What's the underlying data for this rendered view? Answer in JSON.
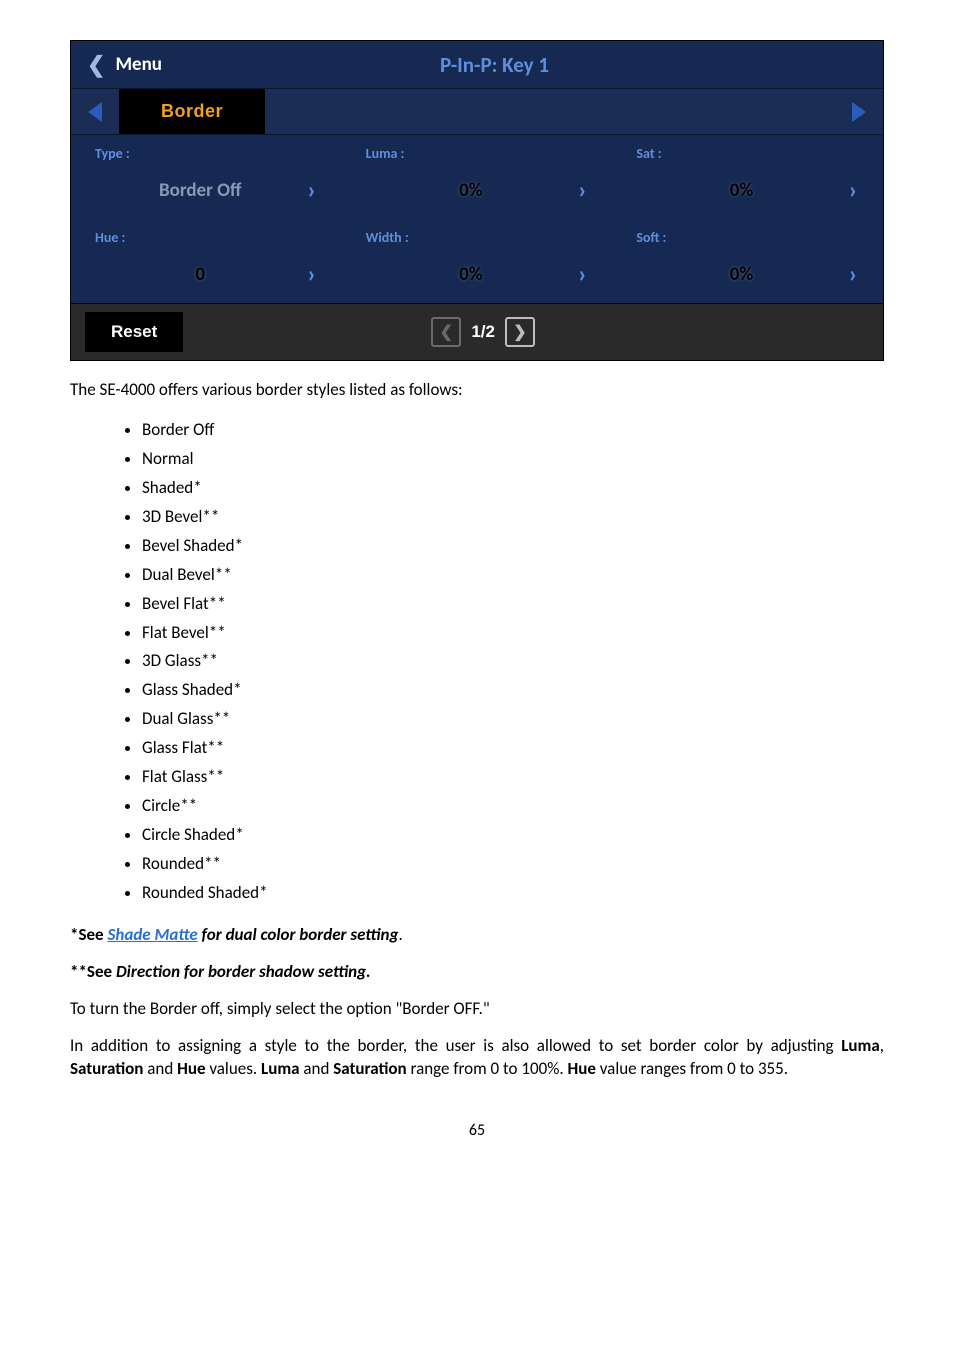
{
  "menu": {
    "back_label": "Menu",
    "title": "P-In-P: Key 1",
    "active_tab": "Border",
    "fields": {
      "type": {
        "label": "Type :",
        "value": "Border Off",
        "value_style": "dim"
      },
      "luma": {
        "label": "Luma :",
        "value": "0%",
        "value_style": "strong"
      },
      "sat": {
        "label": "Sat :",
        "value": "0%",
        "value_style": "strong"
      },
      "hue": {
        "label": "Hue :",
        "value": "0",
        "value_style": "strong"
      },
      "width": {
        "label": "Width :",
        "value": "0%",
        "value_style": "strong"
      },
      "soft": {
        "label": "Soft :",
        "value": "0%",
        "value_style": "strong"
      }
    },
    "reset_label": "Reset",
    "pagination": "1/2"
  },
  "body": {
    "intro": "The SE-4000 offers various border styles listed as follows:",
    "styles": [
      "Border Off",
      "Normal",
      "Shaded*",
      "3D Bevel**",
      "Bevel Shaded*",
      "Dual Bevel**",
      "Bevel Flat**",
      "Flat Bevel**",
      "3D Glass**",
      "Glass Shaded*",
      "Dual Glass**",
      "Glass Flat**",
      "Flat Glass**",
      "Circle**",
      "Circle Shaded*",
      "Rounded**",
      "Rounded Shaded*"
    ],
    "note1_prefix": "*See ",
    "note1_link": "Shade Matte",
    "note1_suffix": " for dual color border setting",
    "note2_prefix": "**See ",
    "note2_rest": "Direction for border shadow setting.",
    "off_line": "To turn the Border off, simply select the option \"Border OFF.\"",
    "para_a": "In addition to assigning a style to the border, the user is also allowed to set border color by adjusting ",
    "para_b": ", ",
    "para_c": " and ",
    "para_d": " values. ",
    "para_e": " and ",
    "para_f": " range from 0 to 100%. ",
    "para_g": " value ranges from 0 to 355.",
    "luma": "Luma",
    "sat": "Saturation",
    "hue": "Hue"
  },
  "page_number": "65"
}
